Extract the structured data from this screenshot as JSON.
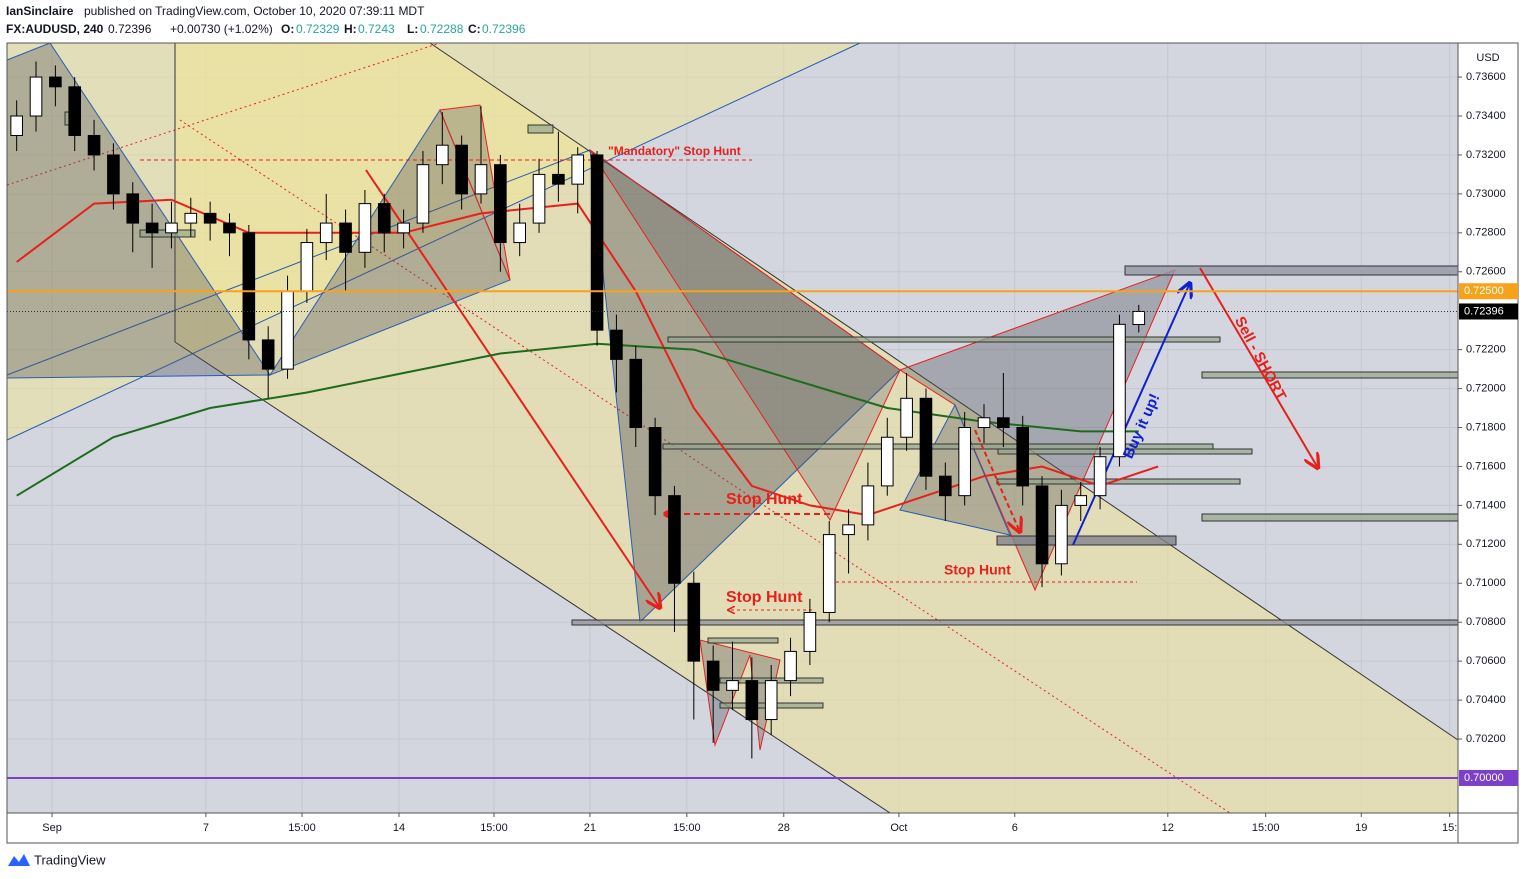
{
  "chart_data": {
    "type": "candlestick",
    "publisher": "IanSinclaire",
    "published": "published on TradingView.com, October 10, 2020 07:39:11 MDT",
    "title": "FX:AUDUSD, 240",
    "change": "+0.00730 (+1.02%)",
    "ohlc_labels": [
      "O:",
      "H:",
      "L:",
      "C:"
    ],
    "axis_unit": "USD",
    "brand": "TradingView",
    "annotations": [
      "\"Mandatory\" Stop Hunt",
      "Stop Hunt",
      "Stop Hunt",
      "Stop Hunt",
      "Sell - SHORT",
      "Buy it up!"
    ],
    "x": [
      0,
      1,
      2,
      3,
      4,
      5,
      6,
      7,
      8,
      9,
      10,
      11,
      12,
      13,
      14,
      15,
      16,
      17,
      18,
      19,
      20,
      21,
      22,
      23,
      24,
      25,
      26,
      27,
      28,
      29,
      30,
      31,
      32,
      33,
      34,
      35,
      36,
      37,
      38,
      39,
      40,
      41,
      42,
      43,
      44,
      45,
      46,
      47,
      48,
      49,
      50,
      51,
      52,
      53,
      54,
      55,
      56,
      57,
      58
    ],
    "open": [
      0.733,
      0.734,
      0.736,
      0.7355,
      0.733,
      0.732,
      0.73,
      0.7285,
      0.728,
      0.7285,
      0.729,
      0.7285,
      0.728,
      0.7225,
      0.721,
      0.725,
      0.7275,
      0.7285,
      0.727,
      0.7295,
      0.728,
      0.7285,
      0.7315,
      0.7325,
      0.73,
      0.7315,
      0.7275,
      0.7285,
      0.731,
      0.7305,
      0.732,
      0.723,
      0.7215,
      0.718,
      0.7145,
      0.71,
      0.706,
      0.7045,
      0.705,
      0.703,
      0.705,
      0.7065,
      0.7085,
      0.7125,
      0.713,
      0.715,
      0.7175,
      0.7195,
      0.7155,
      0.7145,
      0.718,
      0.7185,
      0.718,
      0.715,
      0.711,
      0.714,
      0.7145,
      0.7165,
      0.72329
    ],
    "high": [
      0.7348,
      0.7368,
      0.7366,
      0.736,
      0.7338,
      0.7326,
      0.7306,
      0.7295,
      0.7296,
      0.7298,
      0.7296,
      0.729,
      0.7284,
      0.7232,
      0.7258,
      0.7282,
      0.73,
      0.7292,
      0.7302,
      0.73,
      0.7292,
      0.7322,
      0.7342,
      0.733,
      0.7345,
      0.732,
      0.7295,
      0.7318,
      0.7332,
      0.7324,
      0.7322,
      0.7238,
      0.7222,
      0.7185,
      0.715,
      0.7106,
      0.7068,
      0.707,
      0.7062,
      0.7058,
      0.7072,
      0.7092,
      0.7132,
      0.7138,
      0.7162,
      0.7185,
      0.7208,
      0.72,
      0.7162,
      0.7188,
      0.7192,
      0.7208,
      0.7186,
      0.7155,
      0.7148,
      0.7152,
      0.717,
      0.7238,
      0.7243
    ],
    "low": [
      0.7322,
      0.7332,
      0.7345,
      0.7322,
      0.7312,
      0.7292,
      0.727,
      0.7262,
      0.7272,
      0.7278,
      0.7276,
      0.7268,
      0.7215,
      0.7195,
      0.7205,
      0.7244,
      0.7266,
      0.725,
      0.7262,
      0.727,
      0.7272,
      0.728,
      0.7305,
      0.7292,
      0.7295,
      0.726,
      0.7268,
      0.728,
      0.7296,
      0.729,
      0.7222,
      0.7198,
      0.717,
      0.7135,
      0.7075,
      0.703,
      0.7018,
      0.7035,
      0.701,
      0.7022,
      0.7042,
      0.7058,
      0.708,
      0.7105,
      0.7122,
      0.7145,
      0.7168,
      0.7148,
      0.7132,
      0.714,
      0.7172,
      0.717,
      0.714,
      0.7098,
      0.7104,
      0.7132,
      0.7138,
      0.716,
      0.72288
    ],
    "close": [
      0.734,
      0.736,
      0.7355,
      0.733,
      0.732,
      0.73,
      0.7285,
      0.728,
      0.7285,
      0.729,
      0.7285,
      0.728,
      0.7225,
      0.721,
      0.725,
      0.7275,
      0.7285,
      0.727,
      0.7295,
      0.728,
      0.7285,
      0.7315,
      0.7325,
      0.73,
      0.7315,
      0.7275,
      0.7285,
      0.731,
      0.7305,
      0.732,
      0.723,
      0.7215,
      0.718,
      0.7145,
      0.71,
      0.706,
      0.7045,
      0.705,
      0.703,
      0.705,
      0.7065,
      0.7085,
      0.7125,
      0.713,
      0.715,
      0.7175,
      0.7195,
      0.7155,
      0.7145,
      0.718,
      0.7185,
      0.718,
      0.715,
      0.711,
      0.714,
      0.7145,
      0.7165,
      0.7233,
      0.72396
    ],
    "up_color": "#ffffff",
    "down_color": "#000000",
    "overlays": [
      {
        "color": "#e8201c",
        "x": [
          0,
          4,
          8,
          12,
          16,
          20,
          24,
          29,
          32,
          35,
          38,
          41,
          44,
          47,
          50,
          53,
          56,
          59
        ],
        "values": [
          0.7265,
          0.7295,
          0.7297,
          0.728,
          0.728,
          0.728,
          0.729,
          0.7295,
          0.725,
          0.719,
          0.715,
          0.714,
          0.7135,
          0.7145,
          0.7155,
          0.716,
          0.715,
          0.716
        ]
      },
      {
        "color": "#1e6b1e",
        "x": [
          0,
          5,
          10,
          15,
          20,
          25,
          30,
          35,
          40,
          45,
          50,
          55,
          58
        ],
        "values": [
          0.7145,
          0.7175,
          0.719,
          0.7198,
          0.7208,
          0.7218,
          0.7223,
          0.722,
          0.7205,
          0.719,
          0.7183,
          0.7178,
          0.7178
        ]
      }
    ],
    "price_lines": [
      {
        "value": 0.725,
        "label": "0.72500",
        "color": "#f7a21b"
      },
      {
        "value": 0.7,
        "label": "0.70000",
        "color": "#7b3fc8"
      }
    ],
    "xlim": [
      -0.5,
      74.5
    ],
    "ylim": [
      0.6982,
      0.73775
    ],
    "xticks": [
      {
        "value": 1.83,
        "label": "Sep"
      },
      {
        "value": 9.78,
        "label": "7"
      },
      {
        "value": 14.75,
        "label": "15:00"
      },
      {
        "value": 19.76,
        "label": "14"
      },
      {
        "value": 24.67,
        "label": "15:00"
      },
      {
        "value": 29.63,
        "label": "21"
      },
      {
        "value": 34.64,
        "label": "15:00"
      },
      {
        "value": 39.65,
        "label": "28"
      },
      {
        "value": 45.6,
        "label": "Oct"
      },
      {
        "value": 51.59,
        "label": "6"
      },
      {
        "value": 59.5,
        "label": "12"
      },
      {
        "value": 64.56,
        "label": "15:00"
      },
      {
        "value": 69.5,
        "label": "19"
      },
      {
        "value": 74.07,
        "label": "15:"
      }
    ],
    "yticks": [
      {
        "value": 0.736,
        "label": "0.73600"
      },
      {
        "value": 0.734,
        "label": "0.73400"
      },
      {
        "value": 0.732,
        "label": "0.73200"
      },
      {
        "value": 0.73,
        "label": "0.73000"
      },
      {
        "value": 0.728,
        "label": "0.72800"
      },
      {
        "value": 0.726,
        "label": "0.72600"
      },
      {
        "value": 0.722,
        "label": "0.72200"
      },
      {
        "value": 0.72,
        "label": "0.72000"
      },
      {
        "value": 0.718,
        "label": "0.71800"
      },
      {
        "value": 0.716,
        "label": "0.71600"
      },
      {
        "value": 0.714,
        "label": "0.71400"
      },
      {
        "value": 0.712,
        "label": "0.71200"
      },
      {
        "value": 0.71,
        "label": "0.71000"
      },
      {
        "value": 0.708,
        "label": "0.70800"
      },
      {
        "value": 0.706,
        "label": "0.70600"
      },
      {
        "value": 0.704,
        "label": "0.70400"
      },
      {
        "value": 0.702,
        "label": "0.70200"
      }
    ],
    "grid": true
  }
}
